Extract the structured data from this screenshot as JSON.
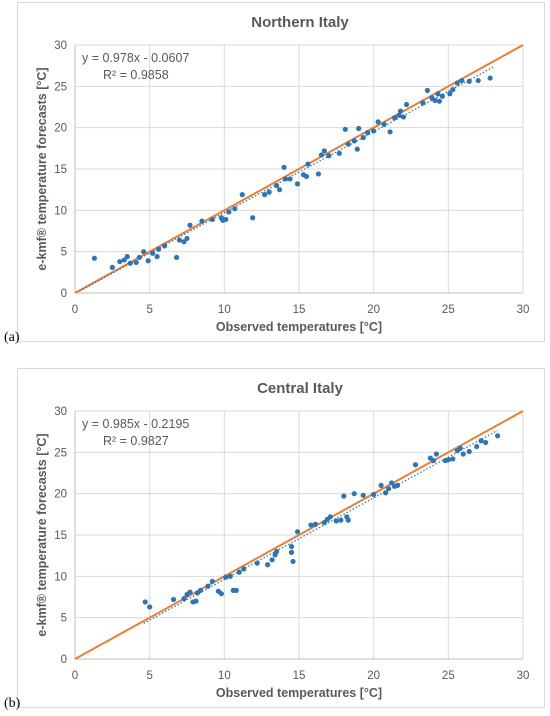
{
  "chart_data": [
    {
      "type": "scatter",
      "panel_label": "(a)",
      "title": "Northern Italy",
      "xlabel": "Observed temperatures [°C]",
      "ylabel": "e-kmf® temperature forecasts [°C]",
      "xlim": [
        0,
        30
      ],
      "ylim": [
        0,
        30
      ],
      "xticks": [
        0,
        5,
        10,
        15,
        20,
        25,
        30
      ],
      "yticks": [
        0,
        5,
        10,
        15,
        20,
        25,
        30
      ],
      "grid": true,
      "equation": "y = 0.978x - 0.0607",
      "r2": "R² = 0.9858",
      "trend": {
        "slope": 0.978,
        "intercept": -0.0607,
        "x_range": [
          0.3,
          28.0
        ],
        "color": "#1f6fb5"
      },
      "identity_line": {
        "x_range": [
          0,
          30
        ],
        "color": "#ed7d31"
      },
      "point_color": "#2e75b6",
      "points": [
        [
          1.3,
          4.2
        ],
        [
          2.5,
          3.1
        ],
        [
          3.0,
          3.8
        ],
        [
          3.3,
          4.0
        ],
        [
          3.5,
          4.4
        ],
        [
          3.7,
          3.6
        ],
        [
          4.1,
          3.7
        ],
        [
          4.3,
          4.3
        ],
        [
          4.6,
          5.0
        ],
        [
          4.9,
          3.9
        ],
        [
          5.2,
          4.8
        ],
        [
          5.5,
          4.4
        ],
        [
          5.6,
          5.3
        ],
        [
          6.0,
          5.7
        ],
        [
          6.8,
          4.3
        ],
        [
          7.0,
          6.4
        ],
        [
          7.3,
          6.2
        ],
        [
          7.5,
          6.6
        ],
        [
          7.7,
          8.2
        ],
        [
          8.5,
          8.7
        ],
        [
          9.2,
          8.9
        ],
        [
          9.8,
          9.1
        ],
        [
          9.9,
          8.8
        ],
        [
          10.1,
          8.9
        ],
        [
          10.3,
          9.8
        ],
        [
          10.7,
          10.2
        ],
        [
          11.2,
          11.9
        ],
        [
          11.9,
          9.1
        ],
        [
          12.7,
          11.9
        ],
        [
          13.0,
          12.2
        ],
        [
          13.5,
          13.0
        ],
        [
          13.7,
          12.5
        ],
        [
          14.0,
          15.2
        ],
        [
          14.1,
          13.8
        ],
        [
          14.4,
          13.8
        ],
        [
          14.9,
          13.2
        ],
        [
          15.3,
          14.3
        ],
        [
          15.5,
          14.1
        ],
        [
          15.6,
          15.6
        ],
        [
          16.3,
          14.4
        ],
        [
          16.5,
          16.7
        ],
        [
          16.7,
          17.2
        ],
        [
          17.0,
          16.6
        ],
        [
          17.7,
          16.9
        ],
        [
          18.1,
          19.8
        ],
        [
          18.3,
          18.0
        ],
        [
          18.7,
          18.4
        ],
        [
          18.9,
          17.4
        ],
        [
          19.0,
          19.9
        ],
        [
          19.3,
          18.8
        ],
        [
          19.6,
          19.4
        ],
        [
          20.0,
          19.6
        ],
        [
          20.3,
          20.7
        ],
        [
          20.7,
          20.4
        ],
        [
          21.1,
          19.5
        ],
        [
          21.4,
          21.2
        ],
        [
          21.7,
          21.5
        ],
        [
          21.8,
          22.0
        ],
        [
          22.0,
          21.3
        ],
        [
          22.2,
          22.8
        ],
        [
          23.3,
          23.0
        ],
        [
          23.6,
          24.5
        ],
        [
          23.9,
          23.6
        ],
        [
          24.1,
          23.3
        ],
        [
          24.3,
          24.1
        ],
        [
          24.4,
          23.2
        ],
        [
          24.6,
          23.8
        ],
        [
          25.1,
          24.1
        ],
        [
          25.3,
          24.6
        ],
        [
          25.6,
          25.4
        ],
        [
          25.9,
          25.7
        ],
        [
          26.4,
          25.6
        ],
        [
          27.0,
          25.7
        ],
        [
          27.8,
          26.0
        ]
      ]
    },
    {
      "type": "scatter",
      "panel_label": "(b)",
      "title": "Central Italy",
      "xlabel": "Observed temperatures [°C]",
      "ylabel": "e-kmf® temperature forecasts [°C]",
      "xlim": [
        0,
        30
      ],
      "ylim": [
        0,
        30
      ],
      "xticks": [
        0,
        5,
        10,
        15,
        20,
        25,
        30
      ],
      "yticks": [
        0,
        5,
        10,
        15,
        20,
        25,
        30
      ],
      "grid": true,
      "equation": "y = 0.985x - 0.2195",
      "r2": "R² = 0.9827",
      "trend": {
        "slope": 0.985,
        "intercept": -0.2195,
        "x_range": [
          4.6,
          28.3
        ],
        "color": "#1f6fb5"
      },
      "identity_line": {
        "x_range": [
          0,
          30
        ],
        "color": "#ed7d31"
      },
      "point_color": "#2e75b6",
      "points": [
        [
          4.7,
          6.9
        ],
        [
          5.0,
          6.3
        ],
        [
          6.6,
          7.2
        ],
        [
          7.3,
          7.3
        ],
        [
          7.5,
          7.8
        ],
        [
          7.7,
          8.1
        ],
        [
          7.9,
          6.9
        ],
        [
          8.1,
          7.0
        ],
        [
          8.2,
          8.0
        ],
        [
          8.4,
          8.3
        ],
        [
          8.9,
          8.8
        ],
        [
          9.2,
          9.4
        ],
        [
          9.6,
          8.2
        ],
        [
          9.8,
          7.9
        ],
        [
          10.1,
          9.9
        ],
        [
          10.4,
          10.0
        ],
        [
          10.6,
          8.3
        ],
        [
          10.8,
          8.3
        ],
        [
          11.0,
          10.5
        ],
        [
          11.3,
          10.9
        ],
        [
          12.2,
          11.6
        ],
        [
          12.9,
          11.4
        ],
        [
          13.2,
          12.0
        ],
        [
          13.4,
          12.6
        ],
        [
          13.5,
          13.0
        ],
        [
          14.5,
          13.6
        ],
        [
          14.5,
          12.9
        ],
        [
          14.6,
          11.8
        ],
        [
          14.9,
          15.4
        ],
        [
          15.8,
          16.2
        ],
        [
          16.1,
          16.3
        ],
        [
          16.7,
          16.5
        ],
        [
          16.9,
          16.9
        ],
        [
          17.1,
          17.2
        ],
        [
          17.5,
          16.7
        ],
        [
          17.8,
          16.8
        ],
        [
          18.0,
          19.7
        ],
        [
          18.2,
          17.2
        ],
        [
          18.3,
          16.8
        ],
        [
          18.7,
          20.0
        ],
        [
          19.3,
          19.8
        ],
        [
          20.0,
          19.9
        ],
        [
          20.5,
          21.0
        ],
        [
          20.8,
          20.1
        ],
        [
          21.0,
          20.6
        ],
        [
          21.2,
          21.3
        ],
        [
          21.4,
          20.9
        ],
        [
          21.6,
          21.0
        ],
        [
          22.8,
          23.5
        ],
        [
          23.8,
          24.3
        ],
        [
          24.0,
          24.0
        ],
        [
          24.2,
          24.8
        ],
        [
          24.8,
          24.0
        ],
        [
          25.0,
          24.1
        ],
        [
          25.3,
          24.2
        ],
        [
          25.6,
          25.2
        ],
        [
          25.8,
          25.5
        ],
        [
          26.0,
          24.8
        ],
        [
          26.4,
          25.1
        ],
        [
          26.9,
          25.7
        ],
        [
          27.2,
          26.4
        ],
        [
          27.5,
          26.2
        ],
        [
          28.3,
          27.0
        ]
      ]
    }
  ]
}
